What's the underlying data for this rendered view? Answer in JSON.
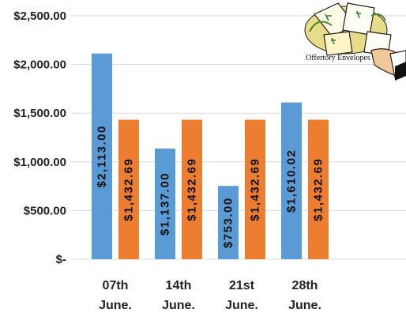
{
  "chart_data": {
    "type": "bar",
    "categories": [
      "07th June.",
      "14th June.",
      "21st June.",
      "28th June."
    ],
    "series": [
      {
        "color": "#5b9bd5",
        "values": [
          2113.0,
          1137.0,
          753.0,
          1610.02
        ],
        "labels": [
          "$2,113.00",
          "$1,137.00",
          "$753.00",
          "$1,610.02"
        ]
      },
      {
        "color": "#ed7d31",
        "values": [
          1432.69,
          1432.69,
          1432.69,
          1432.69
        ],
        "labels": [
          "$1,432.69",
          "$1,432.69",
          "$1,432.69",
          "$1,432.69"
        ]
      }
    ],
    "ylim": [
      0,
      2500
    ],
    "yticks": [
      0,
      500,
      1000,
      1500,
      2000,
      2500
    ],
    "ytick_labels": [
      "$-",
      "$500.00",
      "$1,000.00",
      "$1,500.00",
      "$2,000.00",
      "$2,500.00"
    ],
    "grid": true,
    "title": "",
    "xlabel": "",
    "ylabel": ""
  },
  "illustration": {
    "caption": "Offertory Envelopes",
    "icon": "hand-holding-envelopes-icon"
  }
}
